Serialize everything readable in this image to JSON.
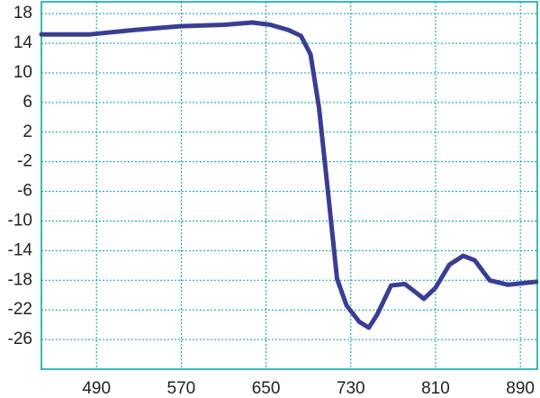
{
  "chart_data": {
    "type": "line",
    "x": [
      438,
      484,
      526,
      569,
      611,
      637,
      654,
      671,
      683,
      692,
      700,
      709,
      717,
      726,
      738,
      747,
      755,
      768,
      781,
      791,
      799,
      810,
      823,
      836,
      847,
      861,
      878,
      905
    ],
    "series": [
      {
        "color": "#3a3d94",
        "values": [
          15.2,
          15.2,
          15.8,
          16.3,
          16.5,
          16.8,
          16.5,
          15.8,
          15,
          12.5,
          5.3,
          -6.8,
          -17.8,
          -21.4,
          -23.6,
          -24.4,
          -22.6,
          -18.7,
          -18.5,
          -19.6,
          -20.5,
          -19,
          -15.9,
          -14.7,
          -15.3,
          -18,
          -18.6,
          -18.2
        ]
      }
    ],
    "xlim": [
      438,
      906
    ],
    "xticks": [
      490,
      570,
      650,
      730,
      810,
      890
    ],
    "ylim": [
      -30,
      19.6
    ],
    "yticks": [
      18,
      14,
      10,
      6,
      2,
      -2,
      -6,
      -10,
      -14,
      -18,
      -22,
      -26
    ],
    "grid": true
  }
}
